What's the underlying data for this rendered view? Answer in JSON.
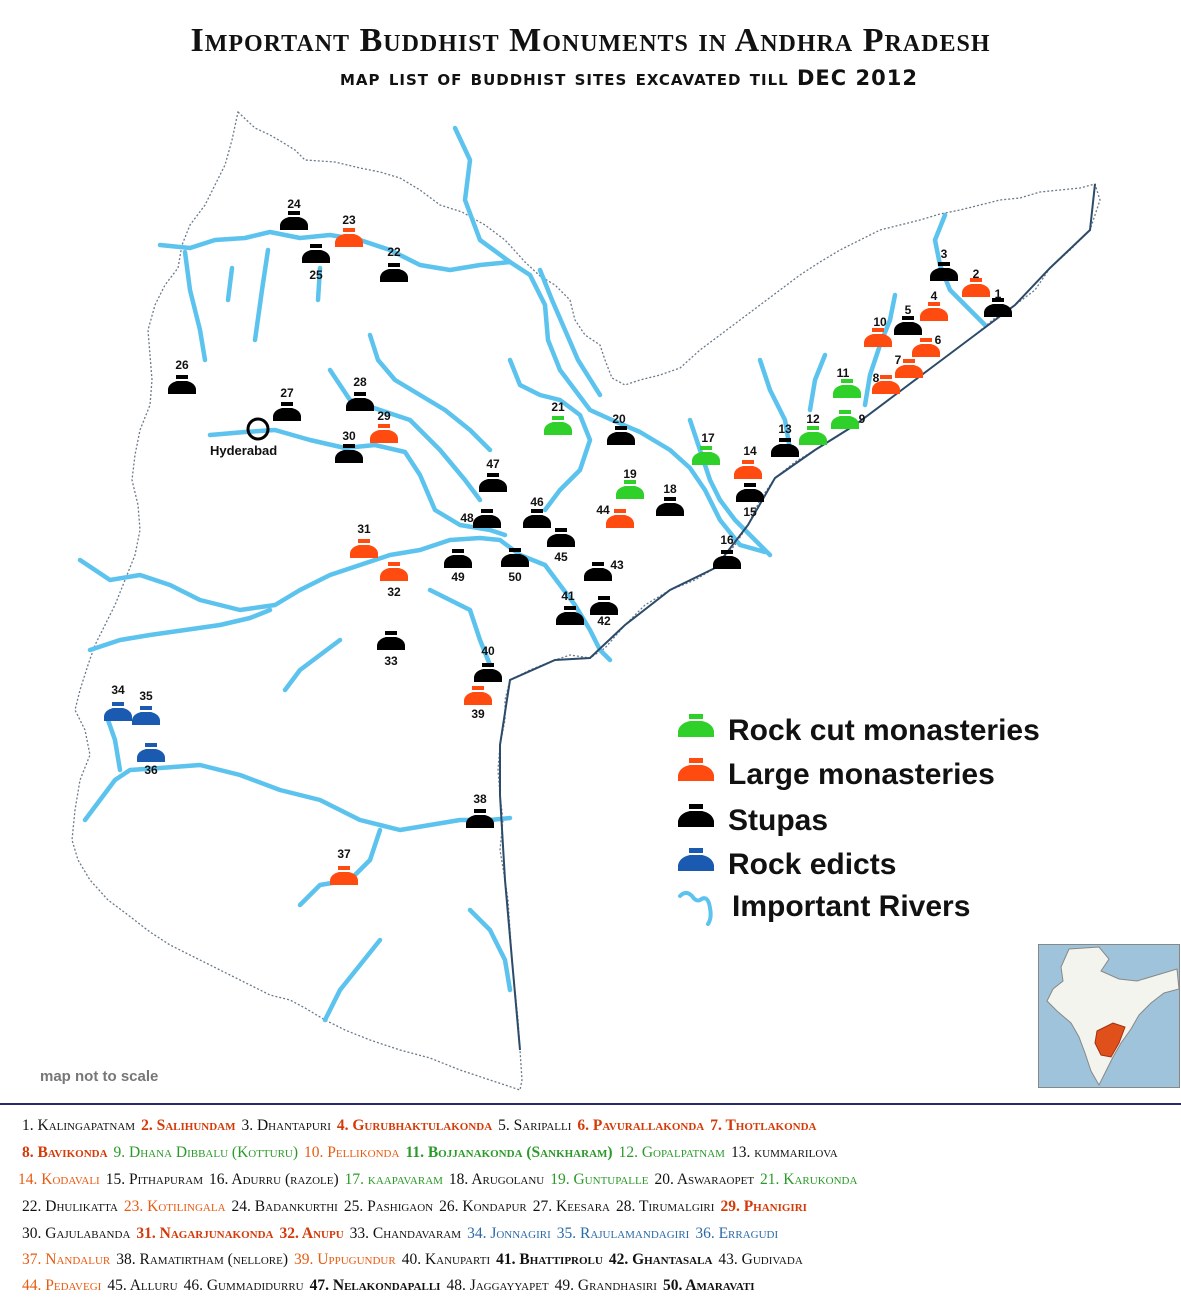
{
  "title": "Important Buddhist Monuments in Andhra Pradesh",
  "subtitle": "map list of buddhist sites excavated till DEC 2012",
  "note": "map not to scale",
  "city": "Hyderabad",
  "legend": [
    {
      "label": "Rock cut monasteries",
      "color": "#2fd02a",
      "icon": "monastery-symbol"
    },
    {
      "label": "Large monasteries",
      "color": "#ff4a10",
      "icon": "monastery-symbol"
    },
    {
      "label": "Stupas",
      "color": "#000000",
      "icon": "stupa-symbol"
    },
    {
      "label": "Rock edicts",
      "color": "#1a5ab0",
      "icon": "edict-symbol"
    },
    {
      "label": "Important Rivers",
      "color": "#5bc3ee",
      "icon": "river-symbol"
    }
  ],
  "colors": {
    "green": "#2fd02a",
    "red": "#ff4a10",
    "black": "#000000",
    "blue": "#1a5ab0",
    "river": "#5bc3ee"
  },
  "markers": [
    {
      "n": "1",
      "type": "black"
    },
    {
      "n": "2",
      "type": "red"
    },
    {
      "n": "3",
      "type": "black"
    },
    {
      "n": "4",
      "type": "red"
    },
    {
      "n": "5",
      "type": "black"
    },
    {
      "n": "6",
      "type": "red"
    },
    {
      "n": "7",
      "type": "red"
    },
    {
      "n": "8",
      "type": "red"
    },
    {
      "n": "9",
      "type": "green"
    },
    {
      "n": "10",
      "type": "red"
    },
    {
      "n": "11",
      "type": "green"
    },
    {
      "n": "12",
      "type": "green"
    },
    {
      "n": "13",
      "type": "black"
    },
    {
      "n": "14",
      "type": "red"
    },
    {
      "n": "15",
      "type": "black"
    },
    {
      "n": "16",
      "type": "black"
    },
    {
      "n": "17",
      "type": "green"
    },
    {
      "n": "18",
      "type": "black"
    },
    {
      "n": "19",
      "type": "green"
    },
    {
      "n": "20",
      "type": "black"
    },
    {
      "n": "21",
      "type": "green"
    },
    {
      "n": "22",
      "type": "black"
    },
    {
      "n": "23",
      "type": "red"
    },
    {
      "n": "24",
      "type": "black"
    },
    {
      "n": "25",
      "type": "black"
    },
    {
      "n": "26",
      "type": "black"
    },
    {
      "n": "27",
      "type": "black"
    },
    {
      "n": "28",
      "type": "black"
    },
    {
      "n": "29",
      "type": "red"
    },
    {
      "n": "30",
      "type": "black"
    },
    {
      "n": "31",
      "type": "red"
    },
    {
      "n": "32",
      "type": "red"
    },
    {
      "n": "33",
      "type": "black"
    },
    {
      "n": "34",
      "type": "blue"
    },
    {
      "n": "35",
      "type": "blue"
    },
    {
      "n": "36",
      "type": "blue"
    },
    {
      "n": "37",
      "type": "red"
    },
    {
      "n": "38",
      "type": "black"
    },
    {
      "n": "39",
      "type": "red"
    },
    {
      "n": "40",
      "type": "black"
    },
    {
      "n": "41",
      "type": "black"
    },
    {
      "n": "42",
      "type": "black"
    },
    {
      "n": "43",
      "type": "black"
    },
    {
      "n": "44",
      "type": "red"
    },
    {
      "n": "45",
      "type": "black"
    },
    {
      "n": "46",
      "type": "black"
    },
    {
      "n": "47",
      "type": "black"
    },
    {
      "n": "48",
      "type": "black"
    },
    {
      "n": "49",
      "type": "black"
    },
    {
      "n": "50",
      "type": "black"
    }
  ],
  "site_list": [
    [
      {
        "t": "1. Kalingapatnam",
        "s": "black"
      },
      {
        "t": "2. Salihundam",
        "s": "bold-red"
      },
      {
        "t": "3. Dhantapuri",
        "s": "black"
      },
      {
        "t": "4. Gurubhaktulakonda",
        "s": "bold-red"
      },
      {
        "t": "5. Saripalli",
        "s": "black"
      },
      {
        "t": "6. Pavurallakonda",
        "s": "bold-red"
      },
      {
        "t": "7. Thotlakonda",
        "s": "bold-red"
      }
    ],
    [
      {
        "t": "8. Bavikonda",
        "s": "bold-red"
      },
      {
        "t": "9. Dhana Dibbalu (Kotturu)",
        "s": "green"
      },
      {
        "t": "10. Pellikonda",
        "s": "red"
      },
      {
        "t": "11. Bojjanakonda (Sankharam)",
        "s": "bold-green"
      },
      {
        "t": "12. Gopalpatnam",
        "s": "green"
      },
      {
        "t": "13. kummarilova",
        "s": "black"
      }
    ],
    [
      {
        "t": "14. Kodavali",
        "s": "red"
      },
      {
        "t": "15. Pithapuram",
        "s": "black"
      },
      {
        "t": "16. Adurru (razole)",
        "s": "black"
      },
      {
        "t": "17. kaapavaram",
        "s": "green"
      },
      {
        "t": "18. Arugolanu",
        "s": "black"
      },
      {
        "t": "19. Guntupalle",
        "s": "green"
      },
      {
        "t": "20. Aswaraopet",
        "s": "black"
      },
      {
        "t": "21. Karukonda",
        "s": "green"
      }
    ],
    [
      {
        "t": "22. Dhulikatta",
        "s": "black"
      },
      {
        "t": "23. Kotilingala",
        "s": "red"
      },
      {
        "t": "24. Badankurthi",
        "s": "black"
      },
      {
        "t": "25. Pashigaon",
        "s": "black"
      },
      {
        "t": "26. Kondapur",
        "s": "black"
      },
      {
        "t": "27. Keesara",
        "s": "black"
      },
      {
        "t": "28. Tirumalgiri",
        "s": "black"
      },
      {
        "t": "29. Phanigiri",
        "s": "bold-red"
      }
    ],
    [
      {
        "t": "30. Gajulabanda",
        "s": "black"
      },
      {
        "t": "31. Nagarjunakonda",
        "s": "bold-red"
      },
      {
        "t": "32. Anupu",
        "s": "bold-red"
      },
      {
        "t": "33. Chandavaram",
        "s": "black"
      },
      {
        "t": "34. Jonnagiri",
        "s": "blue"
      },
      {
        "t": "35. Rajulamandagiri",
        "s": "blue"
      },
      {
        "t": "36. Erragudi",
        "s": "blue"
      }
    ],
    [
      {
        "t": "37. Nandalur",
        "s": "red"
      },
      {
        "t": "38. Ramatirtham (nellore)",
        "s": "black"
      },
      {
        "t": "39. Uppugundur",
        "s": "red"
      },
      {
        "t": "40. Kanuparti",
        "s": "black"
      },
      {
        "t": "41. Bhattiprolu",
        "s": "bold-black"
      },
      {
        "t": "42. Ghantasala",
        "s": "bold-black"
      },
      {
        "t": "43. Gudivada",
        "s": "black"
      }
    ],
    [
      {
        "t": "44. Pedavegi",
        "s": "red"
      },
      {
        "t": "45. Alluru",
        "s": "black"
      },
      {
        "t": "46. Gummadidurru",
        "s": "black"
      },
      {
        "t": "47. Nelakondapalli",
        "s": "bold-black"
      },
      {
        "t": "48. Jaggayyapet",
        "s": "black"
      },
      {
        "t": "49. Grandhasiri",
        "s": "black"
      },
      {
        "t": "50. Amaravati",
        "s": "bold-black"
      }
    ]
  ]
}
